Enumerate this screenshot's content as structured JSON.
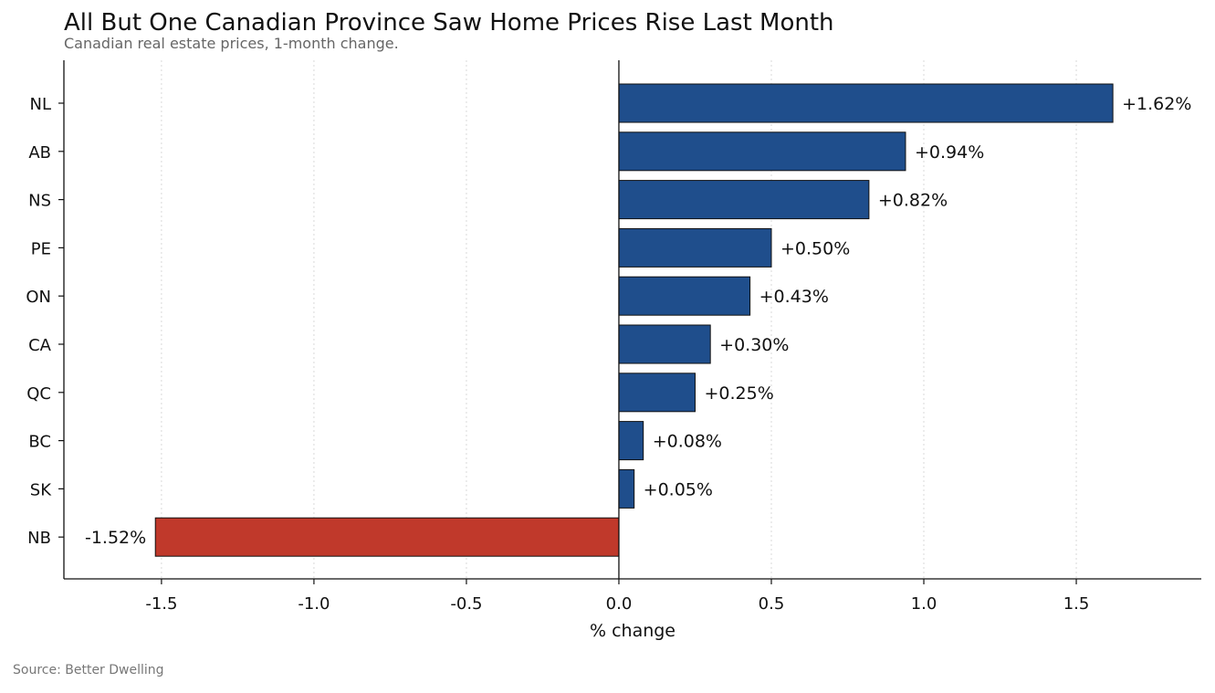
{
  "chart_data": {
    "type": "bar",
    "orientation": "horizontal",
    "title": "All But One Canadian Province Saw Home Prices Rise Last Month",
    "subtitle": "Canadian real estate prices, 1-month change.",
    "source": "Source: Better Dwelling",
    "xlabel": "% change",
    "ylabel": "",
    "categories": [
      "NL",
      "AB",
      "NS",
      "PE",
      "ON",
      "CA",
      "QC",
      "BC",
      "SK",
      "NB"
    ],
    "values": [
      1.62,
      0.94,
      0.82,
      0.5,
      0.43,
      0.3,
      0.25,
      0.08,
      0.05,
      -1.52
    ],
    "data_labels": [
      "+1.62%",
      "+0.94%",
      "+0.82%",
      "+0.50%",
      "+0.43%",
      "+0.30%",
      "+0.25%",
      "+0.08%",
      "+0.05%",
      "-1.52%"
    ],
    "xlim": [
      -1.82,
      1.91
    ],
    "xticks": [
      -1.5,
      -1.0,
      -0.5,
      0.0,
      0.5,
      1.0,
      1.5
    ],
    "xtick_labels": [
      "-1.5",
      "-1.0",
      "-0.5",
      "0.0",
      "0.5",
      "1.0",
      "1.5"
    ],
    "grid": "vertical dotted",
    "colors": {
      "positive": "#1f4e8c",
      "negative": "#c0392b",
      "edge": "#111111",
      "grid": "#d9d9d9"
    }
  }
}
